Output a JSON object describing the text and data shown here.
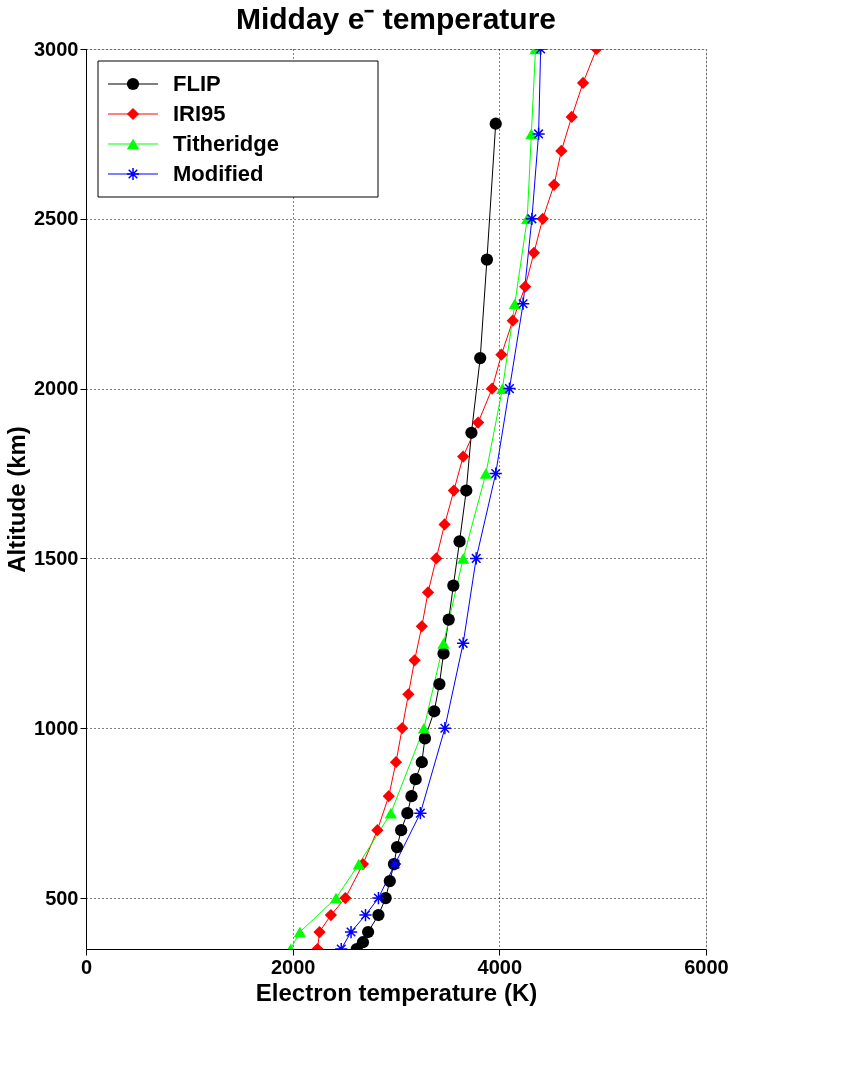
{
  "chart_data": {
    "type": "line",
    "title": "Midday e⁻ temperature",
    "xlabel": "Electron temperature (K)",
    "ylabel": "Altitude (km)",
    "xlim": [
      0,
      6000
    ],
    "xticks": [
      0,
      2000,
      4000,
      6000
    ],
    "ylim": [
      350,
      3000
    ],
    "yticks": [
      500,
      1000,
      1500,
      2000,
      2500,
      3000
    ],
    "grid": true,
    "legend": "top left",
    "line_style": "solid",
    "series": [
      {
        "name": "FLIP",
        "color": "#000000",
        "marker": "circle",
        "x": [
          2620,
          2680,
          2730,
          2830,
          2900,
          2940,
          2980,
          3010,
          3050,
          3110,
          3150,
          3190,
          3250,
          3280,
          3370,
          3420,
          3460,
          3510,
          3555,
          3615,
          3680,
          3730,
          3815,
          3880,
          3965
        ],
        "values": [
          350,
          370,
          400,
          450,
          500,
          550,
          600,
          650,
          700,
          750,
          800,
          850,
          900,
          970,
          1050,
          1130,
          1220,
          1320,
          1420,
          1550,
          1700,
          1870,
          2090,
          2380,
          2780
        ]
      },
      {
        "name": "IRI95",
        "color": "#ff0000",
        "marker": "diamond",
        "x": [
          2240,
          2260,
          2370,
          2510,
          2680,
          2820,
          2930,
          3000,
          3060,
          3120,
          3180,
          3250,
          3310,
          3390,
          3470,
          3560,
          3650,
          3795,
          3930,
          4020,
          4130,
          4250,
          4335,
          4420,
          4530,
          4600,
          4700,
          4810,
          4940
        ],
        "values": [
          350,
          400,
          450,
          500,
          600,
          700,
          800,
          900,
          1000,
          1100,
          1200,
          1300,
          1400,
          1500,
          1600,
          1700,
          1800,
          1900,
          2000,
          2100,
          2200,
          2300,
          2400,
          2500,
          2600,
          2700,
          2800,
          2900,
          3000
        ]
      },
      {
        "name": "Titheridge",
        "color": "#00ff00",
        "marker": "triangle",
        "x": [
          1980,
          2070,
          2420,
          2640,
          2950,
          3270,
          3460,
          3650,
          3870,
          4030,
          4150,
          4270,
          4310,
          4350
        ],
        "values": [
          350,
          400,
          500,
          600,
          750,
          1000,
          1250,
          1500,
          1750,
          2000,
          2250,
          2500,
          2750,
          3000
        ]
      },
      {
        "name": "Modified",
        "color": "#0000ff",
        "marker": "cross",
        "x": [
          2470,
          2565,
          2705,
          2830,
          2990,
          3236,
          3473,
          3650,
          3776,
          3965,
          4098,
          4230,
          4315,
          4380,
          4400
        ],
        "values": [
          350,
          400,
          450,
          500,
          600,
          750,
          1000,
          1250,
          1500,
          1750,
          2000,
          2250,
          2500,
          2750,
          3000
        ]
      }
    ]
  }
}
